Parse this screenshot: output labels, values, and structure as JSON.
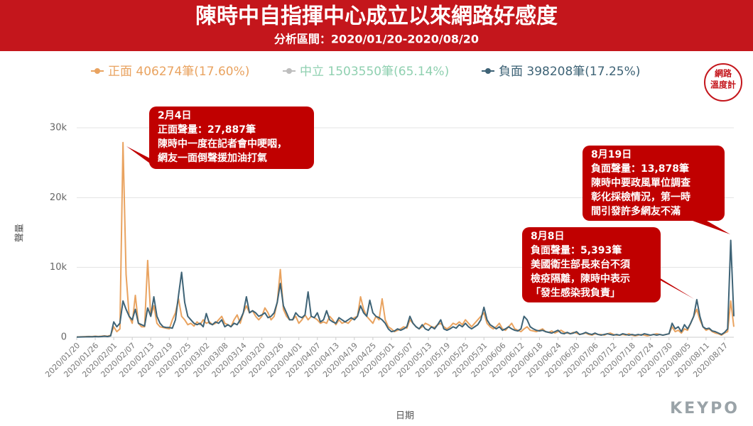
{
  "chart_data": {
    "type": "line",
    "title": "陳時中自指揮中心成立以來網路好感度",
    "subtitle": "分析區間：2020/01/20-2020/08/20",
    "y_label": "聲量",
    "x_label": "日期",
    "brand": "KEYPO",
    "logo": [
      "網路",
      "溫度計"
    ],
    "categories": [
      "2020/01/20",
      "2020/01/21",
      "2020/01/22",
      "2020/01/23",
      "2020/01/24",
      "2020/01/25",
      "2020/01/26",
      "2020/01/27",
      "2020/01/28",
      "2020/01/29",
      "2020/01/30",
      "2020/01/31",
      "2020/02/01",
      "2020/02/02",
      "2020/02/03",
      "2020/02/04",
      "2020/02/05",
      "2020/02/06",
      "2020/02/07",
      "2020/02/08",
      "2020/02/09",
      "2020/02/10",
      "2020/02/11",
      "2020/02/12",
      "2020/02/13",
      "2020/02/14",
      "2020/02/15",
      "2020/02/16",
      "2020/02/17",
      "2020/02/18",
      "2020/02/19",
      "2020/02/20",
      "2020/02/21",
      "2020/02/22",
      "2020/02/23",
      "2020/02/24",
      "2020/02/25",
      "2020/02/26",
      "2020/02/27",
      "2020/02/28",
      "2020/02/29",
      "2020/03/01",
      "2020/03/02",
      "2020/03/03",
      "2020/03/04",
      "2020/03/05",
      "2020/03/06",
      "2020/03/07",
      "2020/03/08",
      "2020/03/09",
      "2020/03/10",
      "2020/03/11",
      "2020/03/12",
      "2020/03/13",
      "2020/03/14",
      "2020/03/15",
      "2020/03/16",
      "2020/03/17",
      "2020/03/18",
      "2020/03/19",
      "2020/03/20",
      "2020/03/21",
      "2020/03/22",
      "2020/03/23",
      "2020/03/24",
      "2020/03/25",
      "2020/03/26",
      "2020/03/27",
      "2020/03/28",
      "2020/03/29",
      "2020/03/30",
      "2020/03/31",
      "2020/04/01",
      "2020/04/02",
      "2020/04/03",
      "2020/04/04",
      "2020/04/05",
      "2020/04/06",
      "2020/04/07",
      "2020/04/08",
      "2020/04/09",
      "2020/04/10",
      "2020/04/11",
      "2020/04/12",
      "2020/04/13",
      "2020/04/14",
      "2020/04/15",
      "2020/04/16",
      "2020/04/17",
      "2020/04/18",
      "2020/04/19",
      "2020/04/20",
      "2020/04/21",
      "2020/04/22",
      "2020/04/23",
      "2020/04/24",
      "2020/04/25",
      "2020/04/26",
      "2020/04/27",
      "2020/04/28",
      "2020/04/29",
      "2020/04/30",
      "2020/05/01",
      "2020/05/02",
      "2020/05/03",
      "2020/05/04",
      "2020/05/05",
      "2020/05/06",
      "2020/05/07",
      "2020/05/08",
      "2020/05/09",
      "2020/05/10",
      "2020/05/11",
      "2020/05/12",
      "2020/05/13",
      "2020/05/14",
      "2020/05/15",
      "2020/05/16",
      "2020/05/17",
      "2020/05/18",
      "2020/05/19",
      "2020/05/20",
      "2020/05/21",
      "2020/05/22",
      "2020/05/23",
      "2020/05/24",
      "2020/05/25",
      "2020/05/26",
      "2020/05/27",
      "2020/05/28",
      "2020/05/29",
      "2020/05/30",
      "2020/05/31",
      "2020/06/01",
      "2020/06/02",
      "2020/06/03",
      "2020/06/04",
      "2020/06/05",
      "2020/06/06",
      "2020/06/07",
      "2020/06/08",
      "2020/06/09",
      "2020/06/10",
      "2020/06/11",
      "2020/06/12",
      "2020/06/13",
      "2020/06/14",
      "2020/06/15",
      "2020/06/16",
      "2020/06/17",
      "2020/06/18",
      "2020/06/19",
      "2020/06/20",
      "2020/06/21",
      "2020/06/22",
      "2020/06/23",
      "2020/06/24",
      "2020/06/25",
      "2020/06/26",
      "2020/06/27",
      "2020/06/28",
      "2020/06/29",
      "2020/06/30",
      "2020/07/01",
      "2020/07/02",
      "2020/07/03",
      "2020/07/04",
      "2020/07/05",
      "2020/07/06",
      "2020/07/07",
      "2020/07/08",
      "2020/07/09",
      "2020/07/10",
      "2020/07/11",
      "2020/07/12",
      "2020/07/13",
      "2020/07/14",
      "2020/07/15",
      "2020/07/16",
      "2020/07/17",
      "2020/07/18",
      "2020/07/19",
      "2020/07/20",
      "2020/07/21",
      "2020/07/22",
      "2020/07/23",
      "2020/07/24",
      "2020/07/25",
      "2020/07/26",
      "2020/07/27",
      "2020/07/28",
      "2020/07/29",
      "2020/07/30",
      "2020/07/31",
      "2020/08/01",
      "2020/08/02",
      "2020/08/03",
      "2020/08/04",
      "2020/08/05",
      "2020/08/06",
      "2020/08/07",
      "2020/08/08",
      "2020/08/09",
      "2020/08/10",
      "2020/08/11",
      "2020/08/12",
      "2020/08/13",
      "2020/08/14",
      "2020/08/15",
      "2020/08/16",
      "2020/08/17",
      "2020/08/18",
      "2020/08/19",
      "2020/08/20"
    ],
    "xticks": [
      "2020/01/20",
      "2020/01/26",
      "2020/02/01",
      "2020/02/07",
      "2020/02/13",
      "2020/02/19",
      "2020/02/25",
      "2020/03/02",
      "2020/03/08",
      "2020/03/14",
      "2020/03/20",
      "2020/03/26",
      "2020/04/01",
      "2020/04/07",
      "2020/04/13",
      "2020/04/19",
      "2020/04/25",
      "2020/05/01",
      "2020/05/07",
      "2020/05/13",
      "2020/05/19",
      "2020/05/25",
      "2020/05/31",
      "2020/06/06",
      "2020/06/12",
      "2020/06/18",
      "2020/06/24",
      "2020/06/30",
      "2020/07/06",
      "2020/07/12",
      "2020/07/18",
      "2020/07/24",
      "2020/07/30",
      "2020/08/05",
      "2020/08/11",
      "2020/08/17"
    ],
    "ylim": [
      0,
      30000
    ],
    "yticks": [
      0,
      {
        "value": 10000,
        "label": "10k"
      },
      {
        "value": 20000,
        "label": "20k"
      },
      {
        "value": 30000,
        "label": "30k"
      }
    ],
    "grid": true,
    "series": [
      {
        "name": "正面 406274筆(17.60%)",
        "color": "#e9a360",
        "values": [
          50,
          60,
          80,
          100,
          120,
          100,
          150,
          120,
          150,
          200,
          150,
          300,
          1500,
          800,
          1200,
          27887,
          9000,
          3000,
          2000,
          6000,
          2000,
          1500,
          1500,
          11000,
          3000,
          4500,
          2000,
          1500,
          1400,
          1300,
          1200,
          2500,
          3500,
          5500,
          3000,
          2500,
          1800,
          2000,
          1600,
          2200,
          1800,
          2500,
          2000,
          2200,
          1800,
          2000,
          2500,
          3000,
          2000,
          1800,
          1500,
          2500,
          3200,
          2000,
          3500,
          4500,
          3500,
          3800,
          3000,
          2500,
          3000,
          4200,
          3500,
          2500,
          3000,
          5000,
          9700,
          4000,
          3000,
          2500,
          2500,
          3000,
          2000,
          2500,
          3200,
          2500,
          3000,
          2800,
          2500,
          2000,
          2200,
          2000,
          3000,
          2500,
          1800,
          2500,
          2000,
          2200,
          2000,
          2500,
          2800,
          3000,
          5800,
          4000,
          3000,
          2500,
          2000,
          3000,
          2500,
          5500,
          2500,
          1500,
          1200,
          800,
          1000,
          1200,
          1500,
          1300,
          2500,
          2000,
          1500,
          1200,
          1500,
          2000,
          1800,
          1500,
          1400,
          1800,
          2000,
          1500,
          1200,
          1500,
          2000,
          1800,
          2200,
          1800,
          2500,
          2000,
          1500,
          2000,
          2500,
          3000,
          3500,
          2000,
          1500,
          1200,
          1500,
          2000,
          1200,
          1000,
          1500,
          2000,
          1200,
          1000,
          800,
          1200,
          1500,
          1000,
          900,
          800,
          1000,
          1200,
          800,
          700,
          900,
          600,
          800,
          1000,
          700,
          600,
          500,
          700,
          600,
          400,
          500,
          600,
          400,
          300,
          500,
          400,
          400,
          300,
          500,
          600,
          400,
          300,
          300,
          400,
          300,
          500,
          300,
          200,
          300,
          400,
          300,
          200,
          300,
          400,
          500,
          400,
          300,
          400,
          500,
          1500,
          800,
          1000,
          600,
          1200,
          1000,
          2000,
          3000,
          4000,
          2500,
          1500,
          1000,
          1200,
          800,
          600,
          500,
          300,
          600,
          800,
          5200,
          1500
        ]
      },
      {
        "name": "中立 1503550筆(65.14%)",
        "color": "#bdbdbd",
        "label_color": "#8fd0b0"
      },
      {
        "name": "負面 398208筆(17.25%)",
        "color": "#3e6376",
        "values": [
          30,
          40,
          50,
          60,
          80,
          60,
          100,
          80,
          100,
          150,
          100,
          200,
          2200,
          1500,
          2000,
          5200,
          4000,
          3000,
          2500,
          4000,
          2000,
          1800,
          1600,
          4200,
          3000,
          5800,
          3000,
          2000,
          1500,
          1400,
          1400,
          1300,
          2500,
          6000,
          9300,
          5000,
          3000,
          2500,
          2000,
          1800,
          2000,
          1500,
          3400,
          2000,
          1800,
          2200,
          2000,
          2500,
          1500,
          1800,
          1500,
          2000,
          1800,
          2500,
          3500,
          5800,
          3500,
          3800,
          3500,
          3000,
          3200,
          3500,
          2800,
          3000,
          3500,
          5000,
          7700,
          4500,
          3500,
          2500,
          2500,
          3500,
          3000,
          2800,
          3200,
          6500,
          3000,
          2800,
          3500,
          2200,
          2500,
          3800,
          2500,
          2200,
          2000,
          2800,
          2500,
          2200,
          2500,
          2800,
          2500,
          3000,
          4500,
          3500,
          3000,
          5300,
          3500,
          3000,
          2800,
          2500,
          2000,
          1200,
          800,
          900,
          1200,
          1000,
          1200,
          1500,
          3000,
          2000,
          1500,
          1200,
          1800,
          1200,
          1000,
          1500,
          1200,
          1800,
          2500,
          1200,
          1000,
          1200,
          1500,
          1300,
          1800,
          1500,
          2000,
          1500,
          1200,
          1500,
          1800,
          2500,
          4300,
          2500,
          1800,
          1500,
          1200,
          1500,
          1000,
          1200,
          1500,
          1200,
          1000,
          900,
          1200,
          3000,
          2500,
          1500,
          1200,
          1000,
          900,
          1000,
          800,
          700,
          600,
          800,
          1000,
          600,
          500,
          700,
          500,
          600,
          800,
          400,
          500,
          700,
          500,
          400,
          600,
          400,
          300,
          400,
          500,
          400,
          300,
          400,
          300,
          500,
          400,
          300,
          400,
          300,
          400,
          300,
          500,
          400,
          300,
          400,
          300,
          400,
          300,
          400,
          500,
          2000,
          1200,
          1500,
          800,
          1800,
          1200,
          2000,
          3000,
          5393,
          3000,
          1500,
          1200,
          1300,
          900,
          800,
          600,
          400,
          700,
          1200,
          13878,
          3000
        ]
      }
    ],
    "annotations": [
      {
        "lines": [
          "2月4日",
          "正面聲量：27,887筆",
          "陳時中一度在記者會中哽咽，",
          "網友一面倒聲援加油打氣"
        ]
      },
      {
        "lines": [
          "8月19日",
          "負面聲量：13,878筆",
          "陳時中要政風單位調查",
          "彰化採檢情況，第一時",
          "間引發許多網友不滿"
        ]
      },
      {
        "lines": [
          "8月8日",
          "負面聲量：5,393筆",
          "美國衛生部長來台不須",
          "檢疫隔離，陳時中表示",
          "「發生感染我負責」"
        ]
      }
    ]
  }
}
